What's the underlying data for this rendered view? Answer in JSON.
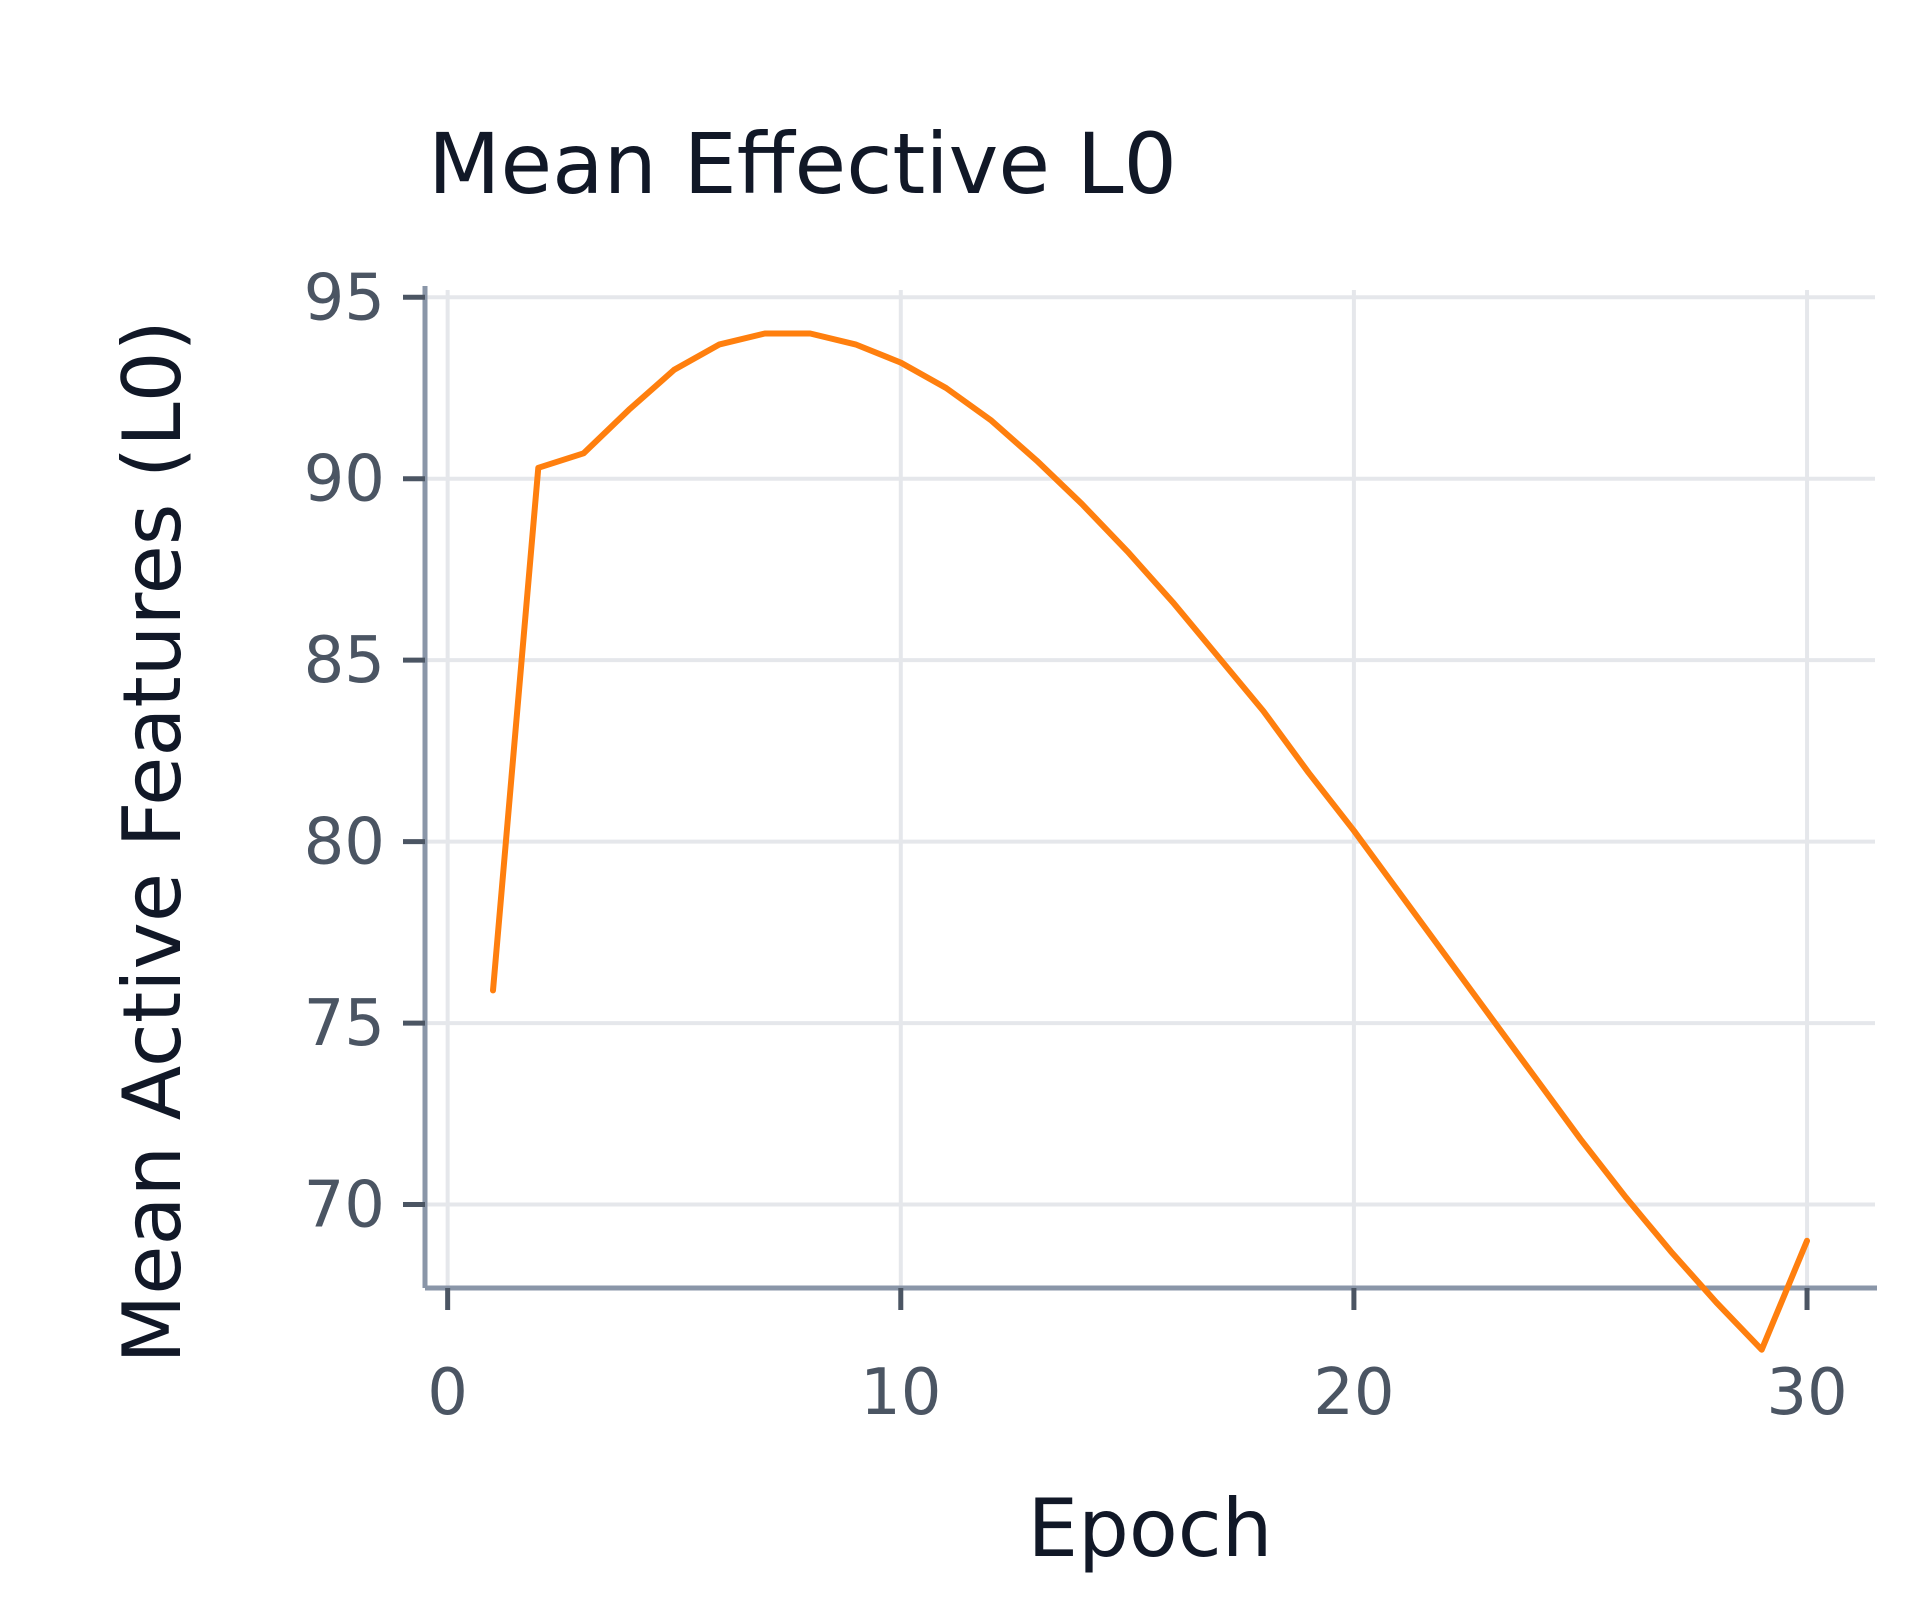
{
  "chart_data": {
    "type": "line",
    "title": "Mean Effective L0",
    "xlabel": "Epoch",
    "ylabel": "Mean Active Features (L0)",
    "xlim": [
      -0.5,
      31.5
    ],
    "ylim": [
      67.7,
      95.2
    ],
    "xticks": [
      0,
      10,
      20,
      30
    ],
    "yticks": [
      70,
      75,
      80,
      85,
      90,
      95
    ],
    "grid": true,
    "series": [
      {
        "color": "#ff7f0e",
        "x": [
          1,
          2,
          3,
          4,
          5,
          6,
          7,
          8,
          9,
          10,
          11,
          12,
          13,
          14,
          15,
          16,
          17,
          18,
          19,
          20,
          21,
          22,
          23,
          24,
          25,
          26,
          27,
          28,
          29,
          30
        ],
        "y": [
          75.9,
          90.3,
          90.7,
          91.9,
          93.0,
          93.7,
          94.0,
          94.0,
          93.7,
          93.2,
          92.5,
          91.6,
          90.5,
          89.3,
          88.0,
          86.6,
          85.1,
          83.6,
          81.9,
          80.3,
          78.6,
          76.9,
          75.2,
          73.5,
          71.8,
          70.2,
          68.7,
          67.3,
          66.0,
          69.0
        ]
      }
    ]
  }
}
